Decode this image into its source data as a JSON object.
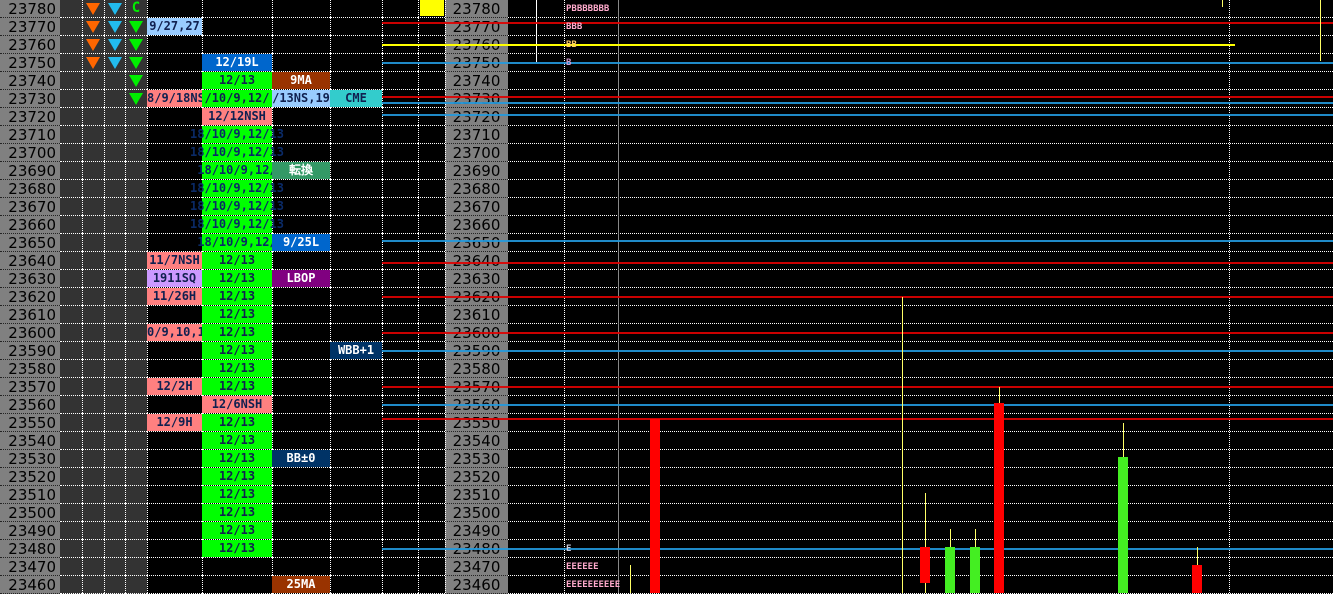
{
  "prices": [
    23780,
    23770,
    23760,
    23750,
    23740,
    23730,
    23720,
    23710,
    23700,
    23690,
    23680,
    23670,
    23660,
    23650,
    23640,
    23630,
    23620,
    23610,
    23600,
    23590,
    23580,
    23570,
    23560,
    23550,
    23540,
    23530,
    23520,
    23510,
    23500,
    23490,
    23480,
    23470,
    23460
  ],
  "signals": {
    "orange_down": [
      23780,
      23770,
      23760,
      23750
    ],
    "cyan_down": [
      23780,
      23770,
      23760,
      23750
    ],
    "green_down": [
      23770,
      23760,
      23750,
      23740,
      23730
    ],
    "c_marker": {
      "price": 23780,
      "text": "C"
    }
  },
  "colors": {
    "pink": "#ff8080",
    "light_blue": "#99ccff",
    "lavender": "#cc99ff",
    "green": "#00ff00",
    "blue": "#0066cc",
    "brown": "#993300",
    "jade": "#339966",
    "purple": "#800080",
    "navy": "#003366",
    "cyan": "#33cccc",
    "red_line": "#e00000",
    "blue_line": "#2299dd",
    "yellow_line": "#ffff00",
    "bull": "#44ee22",
    "bear": "#ff0000",
    "wick": "#ffff66"
  },
  "col_a": [
    {
      "price": 23770,
      "text": "9/27,27",
      "color": "light_blue"
    },
    {
      "price": 23730,
      "text": "8/9/18NS",
      "color": "pink"
    },
    {
      "price": 23640,
      "text": "11/7NSH",
      "color": "pink"
    },
    {
      "price": 23630,
      "text": "1911SQ",
      "color": "lavender"
    },
    {
      "price": 23620,
      "text": "11/26H",
      "color": "pink"
    },
    {
      "price": 23600,
      "text": "0/9,10,1",
      "color": "pink"
    },
    {
      "price": 23570,
      "text": "12/2H",
      "color": "pink"
    },
    {
      "price": 23550,
      "text": "12/9H",
      "color": "pink"
    }
  ],
  "col_b": [
    {
      "price": 23750,
      "text": "12/19L",
      "color": "blue",
      "fg": "#fff"
    },
    {
      "price": 23740,
      "text": "12/13",
      "color": "green"
    },
    {
      "price": 23730,
      "text": "/10/9,12/",
      "color": "green"
    },
    {
      "price": 23720,
      "text": "12/12NSH",
      "color": "pink"
    },
    {
      "price": 23710,
      "text": "18/10/9,12/13",
      "color": "green",
      "overflow": true
    },
    {
      "price": 23700,
      "text": "18/10/9,12/13",
      "color": "green",
      "overflow": true
    },
    {
      "price": 23690,
      "text": "18/10/9,12/",
      "color": "green",
      "overflow": true
    },
    {
      "price": 23680,
      "text": "18/10/9,12/13",
      "color": "green",
      "overflow": true
    },
    {
      "price": 23670,
      "text": "18/10/9,12/13",
      "color": "green",
      "overflow": true
    },
    {
      "price": 23660,
      "text": "18/10/9,12/13",
      "color": "green",
      "overflow": true
    },
    {
      "price": 23650,
      "text": "18/10/9,12/",
      "color": "green",
      "overflow": true
    },
    {
      "price": 23640,
      "text": "12/13",
      "color": "green"
    },
    {
      "price": 23630,
      "text": "12/13",
      "color": "green"
    },
    {
      "price": 23620,
      "text": "12/13",
      "color": "green"
    },
    {
      "price": 23610,
      "text": "12/13",
      "color": "green"
    },
    {
      "price": 23600,
      "text": "12/13",
      "color": "green"
    },
    {
      "price": 23590,
      "text": "12/13",
      "color": "green"
    },
    {
      "price": 23580,
      "text": "12/13",
      "color": "green"
    },
    {
      "price": 23570,
      "text": "12/13",
      "color": "green"
    },
    {
      "price": 23560,
      "text": "12/6NSH",
      "color": "pink"
    },
    {
      "price": 23550,
      "text": "12/13",
      "color": "green"
    },
    {
      "price": 23540,
      "text": "12/13",
      "color": "green"
    },
    {
      "price": 23530,
      "text": "12/13",
      "color": "green"
    },
    {
      "price": 23520,
      "text": "12/13",
      "color": "green"
    },
    {
      "price": 23510,
      "text": "12/13",
      "color": "green"
    },
    {
      "price": 23500,
      "text": "12/13",
      "color": "green"
    },
    {
      "price": 23490,
      "text": "12/13",
      "color": "green"
    },
    {
      "price": 23480,
      "text": "12/13",
      "color": "green"
    }
  ],
  "col_c": [
    {
      "price": 23740,
      "text": "9MA",
      "color": "brown",
      "fg": "#fff"
    },
    {
      "price": 23730,
      "text": "/13NS,19",
      "color": "light_blue"
    },
    {
      "price": 23690,
      "text": "転換",
      "color": "jade",
      "fg": "#fff"
    },
    {
      "price": 23650,
      "text": "9/25L",
      "color": "blue",
      "fg": "#fff"
    },
    {
      "price": 23630,
      "text": "LBOP",
      "color": "purple",
      "fg": "#fff"
    },
    {
      "price": 23530,
      "text": "BB±0",
      "color": "navy",
      "fg": "#fff"
    },
    {
      "price": 23460,
      "text": "25MA",
      "color": "brown",
      "fg": "#fff"
    }
  ],
  "col_d": [
    {
      "price": 23730,
      "text": "CME",
      "color": "cyan"
    },
    {
      "price": 23590,
      "text": "WBB+1",
      "color": "navy",
      "fg": "#fff"
    }
  ],
  "levels": [
    {
      "price": 23772,
      "color": "red_line"
    },
    {
      "price": 23760,
      "color": "yellow_line",
      "partial": true
    },
    {
      "price": 23750,
      "color": "blue_line"
    },
    {
      "price": 23731,
      "color": "red_line"
    },
    {
      "price": 23728,
      "color": "blue_line"
    },
    {
      "price": 23721,
      "color": "blue_line"
    },
    {
      "price": 23651,
      "color": "blue_line"
    },
    {
      "price": 23639,
      "color": "red_line"
    },
    {
      "price": 23620,
      "color": "red_line"
    },
    {
      "price": 23600,
      "color": "red_line"
    },
    {
      "price": 23590,
      "color": "blue_line"
    },
    {
      "price": 23570,
      "color": "red_line"
    },
    {
      "price": 23560,
      "color": "blue_line"
    },
    {
      "price": 23552,
      "color": "red_line"
    },
    {
      "price": 23480,
      "color": "blue_line"
    }
  ],
  "profile": [
    {
      "price": 23780,
      "text": "PBBBBBBB",
      "color": "#ffaacc"
    },
    {
      "price": 23770,
      "text": "BBB",
      "color": "#ffaacc"
    },
    {
      "price": 23760,
      "text": "BB",
      "color": "#ffcc66"
    },
    {
      "price": 23750,
      "text": "B",
      "color": "#cc99cc"
    },
    {
      "price": 23480,
      "text": "E",
      "color": "#ccccdd"
    },
    {
      "price": 23470,
      "text": "EEEEEE",
      "color": "#ffaacc"
    },
    {
      "price": 23460,
      "text": "EEEEEEEEEE",
      "color": "#ffaacc"
    }
  ],
  "candles": [
    {
      "open": 23440,
      "high": 23471,
      "low": 23440,
      "close": 23440,
      "dir": "wick"
    },
    {
      "open": 23552,
      "high": 23552,
      "low": 23440,
      "close": 23440,
      "dir": "bear"
    },
    {
      "open": 23620,
      "high": 23620,
      "low": 23440,
      "close": 23620,
      "dir": "wick"
    },
    {
      "open": 23481,
      "high": 23511,
      "low": 23440,
      "close": 23461,
      "dir": "bear"
    },
    {
      "open": 23440,
      "high": 23491,
      "low": 23440,
      "close": 23481,
      "dir": "bull"
    },
    {
      "open": 23440,
      "high": 23491,
      "low": 23440,
      "close": 23481,
      "dir": "bull"
    },
    {
      "open": 23561,
      "high": 23570,
      "low": 23440,
      "close": 23440,
      "dir": "bear"
    },
    {
      "open": 23440,
      "high": 23550,
      "low": 23440,
      "close": 23531,
      "dir": "bull"
    },
    {
      "open": 23471,
      "high": 23481,
      "low": 23440,
      "close": 23440,
      "dir": "bear"
    },
    {
      "open": 23790,
      "high": 23790,
      "low": 23781,
      "close": 23781,
      "dir": "wick"
    },
    {
      "open": 23790,
      "high": 23790,
      "low": 23751,
      "close": 23751,
      "dir": "wick"
    }
  ]
}
